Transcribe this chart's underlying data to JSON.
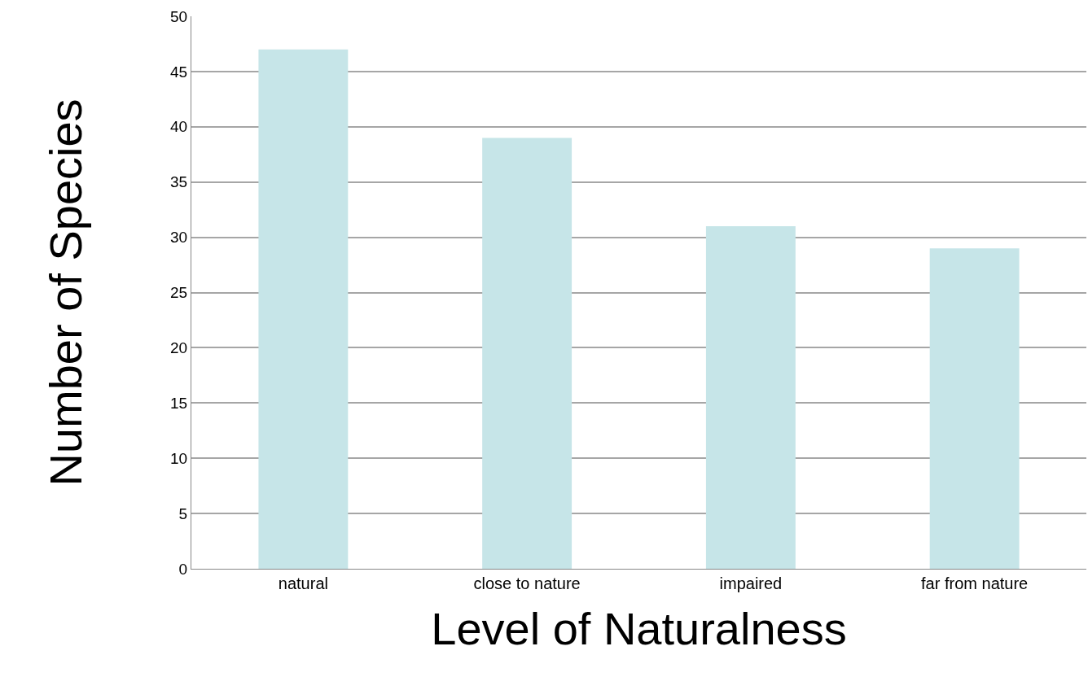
{
  "chart_data": {
    "type": "bar",
    "xlabel": "Level of Naturalness",
    "ylabel": "Number of Species",
    "categories": [
      "natural",
      "close to nature",
      "impaired",
      "far from nature"
    ],
    "values": [
      47,
      39,
      31,
      29
    ],
    "color": "#c6e5e8",
    "ylim": [
      0,
      50
    ],
    "yticks": [
      0,
      5,
      10,
      15,
      20,
      25,
      30,
      35,
      40,
      45,
      50
    ],
    "grid": "y",
    "legend": false
  }
}
